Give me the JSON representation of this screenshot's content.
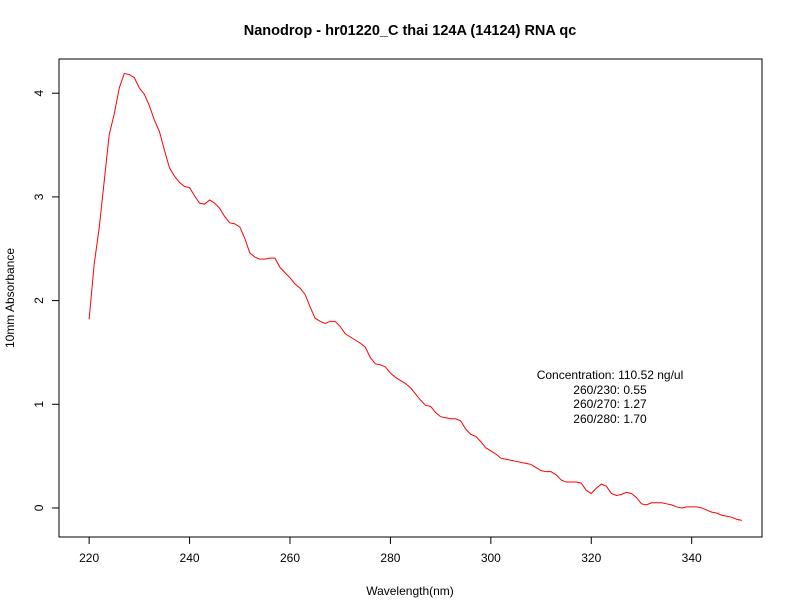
{
  "chart_data": {
    "type": "line",
    "title": "Nanodrop - hr01220_C thai 124A (14124) RNA qc",
    "xlabel": "Wavelength(nm)",
    "ylabel": "10mm Absorbance",
    "xlim": [
      214,
      354
    ],
    "ylim": [
      -0.28,
      4.33
    ],
    "x_ticks": [
      220,
      240,
      260,
      280,
      300,
      320,
      340
    ],
    "y_ticks": [
      0,
      1,
      2,
      3,
      4
    ],
    "line_color": "#ff0000",
    "grid": false,
    "legend": "none",
    "annotations": [
      "Concentration: 110.52 ng/ul",
      "260/230: 0.55",
      "260/270: 1.27",
      "260/280: 1.70"
    ],
    "series": [
      {
        "x": [
          220,
          221,
          222,
          223,
          224,
          225,
          226,
          227,
          228,
          229,
          230,
          231,
          232,
          233,
          234,
          235,
          236,
          237,
          238,
          239,
          240,
          241,
          242,
          243,
          244,
          245,
          246,
          247,
          248,
          249,
          250,
          251,
          252,
          253,
          254,
          255,
          256,
          257,
          258,
          259,
          260,
          261,
          262,
          263,
          264,
          265,
          266,
          267,
          268,
          269,
          270,
          271,
          272,
          273,
          274,
          275,
          276,
          277,
          278,
          279,
          280,
          281,
          282,
          283,
          284,
          285,
          286,
          287,
          288,
          289,
          290,
          291,
          292,
          293,
          294,
          295,
          296,
          297,
          298,
          299,
          300,
          301,
          302,
          303,
          304,
          305,
          306,
          307,
          308,
          309,
          310,
          311,
          312,
          313,
          314,
          315,
          316,
          317,
          318,
          319,
          320,
          321,
          322,
          323,
          324,
          325,
          326,
          327,
          328,
          329,
          330,
          331,
          332,
          333,
          334,
          335,
          336,
          337,
          338,
          339,
          340,
          341,
          342,
          343,
          344,
          345,
          346,
          347,
          348,
          349,
          350
        ],
        "values": [
          1.82,
          2.35,
          2.7,
          3.15,
          3.6,
          3.8,
          4.05,
          4.19,
          4.18,
          4.15,
          4.05,
          3.99,
          3.88,
          3.74,
          3.63,
          3.45,
          3.28,
          3.2,
          3.14,
          3.1,
          3.09,
          3.01,
          2.94,
          2.93,
          2.97,
          2.94,
          2.89,
          2.81,
          2.75,
          2.74,
          2.71,
          2.6,
          2.46,
          2.42,
          2.4,
          2.4,
          2.41,
          2.41,
          2.32,
          2.27,
          2.22,
          2.16,
          2.12,
          2.06,
          1.94,
          1.83,
          1.8,
          1.78,
          1.8,
          1.8,
          1.75,
          1.68,
          1.65,
          1.62,
          1.59,
          1.55,
          1.45,
          1.39,
          1.38,
          1.36,
          1.3,
          1.26,
          1.23,
          1.2,
          1.16,
          1.1,
          1.04,
          0.99,
          0.98,
          0.92,
          0.88,
          0.87,
          0.86,
          0.86,
          0.84,
          0.76,
          0.71,
          0.69,
          0.64,
          0.58,
          0.55,
          0.52,
          0.48,
          0.47,
          0.46,
          0.45,
          0.44,
          0.43,
          0.42,
          0.39,
          0.36,
          0.35,
          0.35,
          0.32,
          0.27,
          0.25,
          0.25,
          0.25,
          0.24,
          0.17,
          0.14,
          0.19,
          0.23,
          0.21,
          0.14,
          0.12,
          0.13,
          0.15,
          0.14,
          0.1,
          0.04,
          0.03,
          0.05,
          0.05,
          0.05,
          0.04,
          0.03,
          0.01,
          0,
          0.01,
          0.01,
          0.01,
          0,
          -0.02,
          -0.04,
          -0.05,
          -0.07,
          -0.08,
          -0.09,
          -0.11,
          -0.12
        ]
      }
    ]
  }
}
